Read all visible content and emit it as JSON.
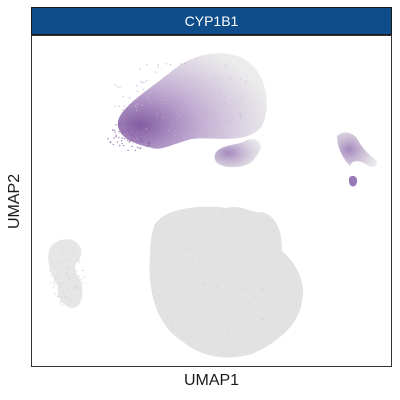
{
  "chart_data": {
    "type": "scatter",
    "title": "CYP1B1",
    "xlabel": "UMAP1",
    "ylabel": "UMAP2",
    "grid": false,
    "legend": "none",
    "colors": {
      "strip": "#0f4c8a",
      "low": "#d9d9d9",
      "high": "#8a64a8"
    },
    "clusters": [
      {
        "name": "upper-left",
        "center": [
          -2.5,
          6.8
        ],
        "expression": "high-at-left-edge"
      },
      {
        "name": "upper-middle-small",
        "center": [
          0.8,
          3.2
        ],
        "expression": "medium"
      },
      {
        "name": "upper-right-small",
        "center": [
          5.9,
          3.4
        ],
        "expression": "medium"
      },
      {
        "name": "lower-center",
        "center": [
          -0.2,
          -3.5
        ],
        "expression": "none"
      },
      {
        "name": "lower-left",
        "center": [
          -6.2,
          -3.8
        ],
        "expression": "none"
      }
    ]
  }
}
